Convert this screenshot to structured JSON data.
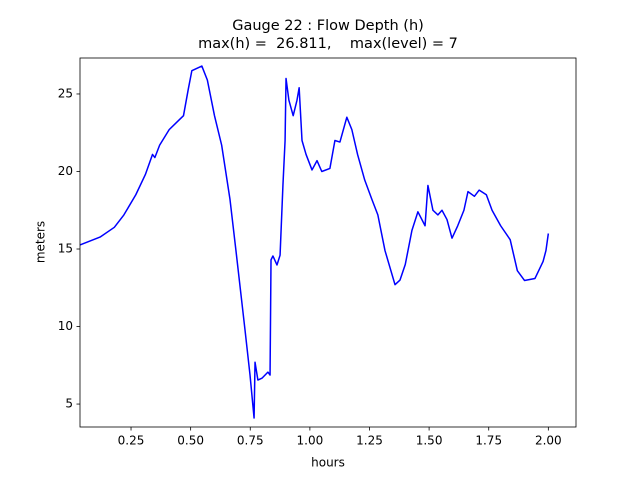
{
  "chart_data": {
    "type": "line",
    "title": "Gauge 22 : Flow Depth (h)",
    "subtitle": "max(h) =  26.811,    max(level) = 7",
    "x_label": "hours",
    "y_label": "meters",
    "xlim": [
      0.036,
      2.116
    ],
    "ylim": [
      3.52,
      27.32
    ],
    "xticks": [
      0.25,
      {
        "value": 0.5,
        "label": "0.50"
      },
      0.75,
      {
        "value": 1.0,
        "label": "1.00"
      },
      1.25,
      {
        "value": 1.5,
        "label": "1.50"
      },
      1.75,
      {
        "value": 2.0,
        "label": "2.00"
      }
    ],
    "yticks": [
      5,
      10,
      15,
      20,
      25
    ],
    "series": [
      {
        "color": "#0000ff",
        "x": [
          0.036,
          0.12,
          0.18,
          0.22,
          0.27,
          0.31,
          0.34,
          0.35,
          0.37,
          0.41,
          0.45,
          0.47,
          0.49,
          0.505,
          0.547,
          0.57,
          0.6,
          0.63,
          0.665,
          0.69,
          0.728,
          0.749,
          0.766,
          0.77,
          0.782,
          0.8,
          0.824,
          0.833,
          0.837,
          0.845,
          0.862,
          0.875,
          0.887,
          0.896,
          0.9,
          0.912,
          0.93,
          0.946,
          0.955,
          0.967,
          0.984,
          1.009,
          1.03,
          1.05,
          1.084,
          1.105,
          1.126,
          1.155,
          1.176,
          1.2,
          1.23,
          1.26,
          1.285,
          1.315,
          1.357,
          1.378,
          1.4,
          1.428,
          1.453,
          1.483,
          1.495,
          1.516,
          1.537,
          1.554,
          1.575,
          1.596,
          1.62,
          1.646,
          1.663,
          1.69,
          1.71,
          1.74,
          1.764,
          1.8,
          1.84,
          1.87,
          1.9,
          1.944,
          1.978,
          1.99,
          2.0
        ],
        "values": [
          15.26,
          15.77,
          16.4,
          17.2,
          18.5,
          19.8,
          21.1,
          20.9,
          21.7,
          22.7,
          23.3,
          23.6,
          25.3,
          26.5,
          26.8,
          25.9,
          23.6,
          21.7,
          18.2,
          14.9,
          9.77,
          6.87,
          4.1,
          7.7,
          6.55,
          6.68,
          7.06,
          6.87,
          14.3,
          14.55,
          13.97,
          14.6,
          19.1,
          22.0,
          26.0,
          24.6,
          23.6,
          24.6,
          25.4,
          22.0,
          21.1,
          20.1,
          20.7,
          20.0,
          20.2,
          22.0,
          21.9,
          23.5,
          22.7,
          21.1,
          19.45,
          18.2,
          17.2,
          14.9,
          12.7,
          13.0,
          14.0,
          16.2,
          17.4,
          16.5,
          19.1,
          17.5,
          17.2,
          17.5,
          16.9,
          15.7,
          16.5,
          17.5,
          18.7,
          18.4,
          18.8,
          18.5,
          17.5,
          16.5,
          15.6,
          13.6,
          12.97,
          13.1,
          14.2,
          14.9,
          16.0
        ]
      }
    ]
  }
}
